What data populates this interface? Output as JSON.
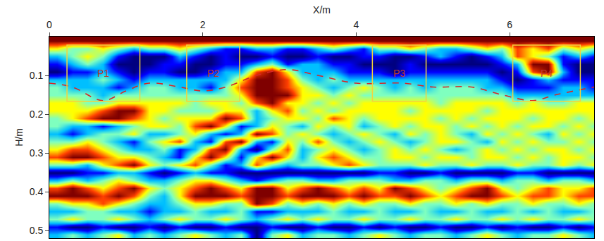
{
  "chart_data": {
    "type": "heatmap",
    "x_label": "X/m",
    "y_label": "H/m",
    "xlim": [
      0,
      7.1
    ],
    "ylim": [
      0.52,
      0
    ],
    "xticks": [
      0,
      2,
      4,
      6
    ],
    "yticks": [
      0.1,
      0.2,
      0.3,
      0.4,
      0.5
    ],
    "grid": false,
    "colors": [
      "#00007f",
      "#0000ff",
      "#00bfff",
      "#7fffbf",
      "#ffff00",
      "#ff4000",
      "#7f0000"
    ],
    "zlim": [
      -3,
      3
    ],
    "x": [
      0.1,
      0.3,
      0.5,
      0.7,
      0.9,
      1.1,
      1.3,
      1.5,
      1.7,
      1.9,
      2.1,
      2.3,
      2.5,
      2.7,
      2.9,
      3.1,
      3.3,
      3.5,
      3.7,
      3.9,
      4.1,
      4.3,
      4.5,
      4.7,
      4.9,
      5.1,
      5.3,
      5.5,
      5.7,
      5.9,
      6.1,
      6.3,
      6.5,
      6.7,
      6.9,
      7.1
    ],
    "y": [
      0.01,
      0.03,
      0.05,
      0.07,
      0.09,
      0.11,
      0.13,
      0.15,
      0.17,
      0.19,
      0.21,
      0.23,
      0.25,
      0.27,
      0.29,
      0.31,
      0.33,
      0.35,
      0.37,
      0.39,
      0.41,
      0.43,
      0.45,
      0.47,
      0.49,
      0.51
    ],
    "cells": [
      [
        3,
        3,
        3,
        3,
        3,
        3,
        3,
        3,
        3,
        3,
        3,
        3,
        3,
        3,
        3,
        3,
        3,
        3,
        3,
        3,
        3,
        3,
        3,
        3,
        3,
        3,
        3,
        3,
        3,
        3,
        3,
        3,
        3,
        3,
        3,
        3
      ],
      [
        1,
        0,
        0,
        1,
        0,
        -1,
        0,
        0,
        1,
        0,
        -1,
        -2,
        -2,
        -1,
        -1,
        -2,
        -2,
        -1,
        0,
        -1,
        -2,
        0,
        0,
        1,
        0,
        -1,
        -1,
        0,
        1,
        0,
        2,
        1,
        2,
        0,
        1,
        0
      ],
      [
        -1,
        0,
        1,
        0,
        -2,
        -3,
        -3,
        -3,
        -1,
        -2,
        -3,
        -2,
        -3,
        -3,
        -2,
        -3,
        -3,
        -2,
        -3,
        -3,
        -2,
        -2,
        -3,
        -3,
        -2,
        -1,
        -2,
        -3,
        -2,
        -1,
        2,
        1,
        0,
        -2,
        -1,
        -2
      ],
      [
        -2,
        -1,
        0,
        -1,
        -3,
        -3,
        -3,
        -2,
        -2,
        -3,
        -3,
        -2,
        -2,
        -1,
        0,
        -2,
        -1,
        -1,
        -2,
        -2,
        -3,
        -3,
        -3,
        -2,
        -3,
        -3,
        -3,
        -3,
        -3,
        -2,
        -1,
        3,
        3,
        -2,
        -3,
        -3
      ],
      [
        -3,
        -2,
        -2,
        -1,
        -2,
        -3,
        -2,
        -2,
        -3,
        -3,
        -2,
        -1,
        -1,
        2,
        3,
        1,
        -1,
        -1,
        -1,
        -2,
        -2,
        -2,
        -3,
        -2,
        -2,
        -2,
        -2,
        -2,
        -2,
        -3,
        -2,
        2,
        3,
        -1,
        -3,
        -3
      ],
      [
        -1,
        -1,
        -1,
        0,
        -1,
        -2,
        -1,
        -1,
        -1,
        -1,
        -1,
        -1,
        1,
        3,
        3,
        2,
        0,
        -1,
        0,
        -1,
        -1,
        -1,
        -1,
        -1,
        -1,
        -1,
        -1,
        -1,
        -1,
        -2,
        -3,
        -2,
        -1,
        -2,
        -2,
        -2
      ],
      [
        0,
        -1,
        -1,
        -1,
        -2,
        -1,
        0,
        0,
        -1,
        -1,
        -2,
        0,
        2,
        3,
        3,
        2,
        1,
        0,
        -1,
        0,
        1,
        0,
        -1,
        0,
        -1,
        0,
        0,
        0,
        -1,
        -1,
        -2,
        -2,
        -2,
        -1,
        -1,
        -2
      ],
      [
        0,
        0,
        0,
        -1,
        0,
        0,
        0,
        0,
        0,
        0,
        0,
        0,
        1,
        3,
        3,
        3,
        1,
        1,
        0,
        1,
        0,
        0,
        0,
        0,
        0,
        0,
        0,
        0,
        0,
        0,
        -1,
        -1,
        -1,
        -1,
        -1,
        -1
      ],
      [
        1,
        1,
        0,
        0,
        1,
        1,
        1,
        1,
        1,
        0,
        1,
        1,
        0,
        2,
        3,
        1,
        1,
        0,
        1,
        0,
        1,
        1,
        1,
        1,
        1,
        0,
        1,
        1,
        1,
        1,
        0,
        1,
        0,
        0,
        1,
        1
      ],
      [
        1,
        1,
        1,
        2,
        3,
        3,
        1,
        1,
        0,
        0,
        0,
        1,
        1,
        -1,
        1,
        2,
        0,
        1,
        0,
        1,
        1,
        1,
        1,
        0,
        1,
        1,
        1,
        1,
        0,
        1,
        1,
        1,
        1,
        1,
        1,
        1
      ],
      [
        0,
        1,
        2,
        3,
        3,
        2,
        1,
        0,
        1,
        1,
        1,
        3,
        2,
        -1,
        0,
        1,
        1,
        0,
        2,
        1,
        0,
        1,
        1,
        1,
        1,
        0,
        1,
        0,
        1,
        1,
        1,
        0,
        1,
        1,
        0,
        1
      ],
      [
        0,
        -1,
        -1,
        -2,
        -1,
        0,
        1,
        1,
        0,
        2,
        3,
        1,
        -2,
        -1,
        1,
        0,
        -1,
        1,
        0,
        1,
        -1,
        0,
        1,
        0,
        1,
        1,
        0,
        1,
        0,
        1,
        0,
        1,
        1,
        0,
        1,
        0
      ],
      [
        -1,
        -2,
        -1,
        0,
        0,
        1,
        -1,
        -1,
        0,
        1,
        -1,
        -2,
        -1,
        3,
        2,
        0,
        1,
        0,
        -1,
        0,
        1,
        0,
        -1,
        1,
        0,
        1,
        0,
        -1,
        1,
        0,
        1,
        0,
        -1,
        1,
        0,
        1
      ],
      [
        0,
        0,
        1,
        0,
        -1,
        -2,
        0,
        1,
        2,
        -1,
        -2,
        2,
        3,
        -1,
        -2,
        1,
        0,
        2,
        0,
        -1,
        0,
        1,
        0,
        -1,
        0,
        1,
        1,
        0,
        -1,
        1,
        0,
        1,
        0,
        0,
        1,
        0
      ],
      [
        1,
        2,
        2,
        1,
        0,
        -1,
        -1,
        0,
        -2,
        -1,
        2,
        3,
        -1,
        -3,
        0,
        2,
        -1,
        0,
        1,
        0,
        -1,
        0,
        1,
        0,
        1,
        0,
        -1,
        0,
        1,
        0,
        1,
        0,
        1,
        1,
        0,
        1
      ],
      [
        2,
        3,
        3,
        2,
        1,
        1,
        0,
        -1,
        -2,
        1,
        3,
        1,
        -2,
        1,
        3,
        1,
        -1,
        1,
        2,
        1,
        0,
        0,
        1,
        1,
        0,
        1,
        1,
        0,
        1,
        1,
        0,
        1,
        0,
        1,
        1,
        0
      ],
      [
        0,
        0,
        -1,
        1,
        2,
        3,
        1,
        0,
        1,
        2,
        0,
        -2,
        -1,
        2,
        0,
        -1,
        0,
        0,
        1,
        2,
        1,
        0,
        0,
        0,
        1,
        0,
        0,
        1,
        0,
        0,
        1,
        0,
        0,
        1,
        0,
        1
      ],
      [
        -3,
        -3,
        -2,
        -2,
        -1,
        -1,
        -2,
        -3,
        -2,
        -1,
        -2,
        -2,
        -3,
        -3,
        -3,
        -3,
        -3,
        -3,
        -3,
        -3,
        -3,
        -2,
        -2,
        -3,
        -3,
        -2,
        -3,
        -3,
        -3,
        -3,
        -2,
        -2,
        -3,
        -3,
        -3,
        -3
      ],
      [
        -1,
        0,
        -1,
        0,
        1,
        0,
        -1,
        -1,
        0,
        1,
        1,
        0,
        -1,
        -2,
        -1,
        0,
        0,
        -1,
        -1,
        0,
        0,
        0,
        -1,
        -1,
        0,
        0,
        -1,
        0,
        0,
        -1,
        0,
        0,
        -1,
        0,
        0,
        -1
      ],
      [
        2,
        3,
        2,
        1,
        2,
        3,
        1,
        0,
        1,
        2,
        3,
        2,
        1,
        3,
        3,
        1,
        2,
        3,
        2,
        1,
        2,
        1,
        3,
        2,
        1,
        0,
        1,
        2,
        3,
        1,
        0,
        1,
        2,
        1,
        1,
        2
      ],
      [
        3,
        3,
        3,
        2,
        3,
        2,
        0,
        -1,
        1,
        3,
        3,
        3,
        2,
        3,
        3,
        2,
        3,
        3,
        3,
        2,
        3,
        2,
        2,
        3,
        2,
        1,
        2,
        3,
        3,
        2,
        1,
        2,
        2,
        1,
        2,
        2
      ],
      [
        0,
        1,
        1,
        2,
        1,
        0,
        -1,
        -1,
        0,
        1,
        1,
        0,
        0,
        3,
        2,
        0,
        1,
        0,
        1,
        0,
        1,
        0,
        0,
        1,
        0,
        0,
        1,
        0,
        1,
        0,
        0,
        1,
        0,
        0,
        1,
        0
      ],
      [
        -1,
        -1,
        0,
        0,
        -1,
        -1,
        -2,
        -1,
        -1,
        0,
        -1,
        -1,
        0,
        -2,
        -2,
        -1,
        -1,
        -1,
        0,
        -1,
        -1,
        0,
        -1,
        -1,
        0,
        -1,
        -1,
        0,
        -1,
        -1,
        0,
        -1,
        0,
        -1,
        -1,
        0
      ],
      [
        0,
        1,
        0,
        0,
        1,
        0,
        -1,
        0,
        1,
        0,
        0,
        1,
        0,
        -1,
        0,
        1,
        0,
        1,
        0,
        0,
        1,
        0,
        0,
        1,
        0,
        0,
        1,
        0,
        0,
        1,
        0,
        1,
        0,
        0,
        1,
        0
      ],
      [
        -2,
        -3,
        -3,
        -2,
        -3,
        -3,
        -2,
        -3,
        -2,
        -3,
        -3,
        -2,
        -3,
        -3,
        -2,
        -3,
        -3,
        -2,
        -3,
        -3,
        -2,
        -3,
        -2,
        -3,
        -3,
        -2,
        -3,
        -3,
        -2,
        -3,
        -2,
        -3,
        -3,
        -2,
        -3,
        -2
      ],
      [
        -1,
        0,
        -1,
        0,
        1,
        -1,
        0,
        -1,
        0,
        1,
        0,
        -1,
        0,
        -3,
        0,
        1,
        -1,
        0,
        0,
        -1,
        0,
        1,
        0,
        -1,
        0,
        0,
        -1,
        0,
        1,
        0,
        -1,
        0,
        0,
        1,
        0,
        -1
      ]
    ],
    "lines": [
      {
        "x": [
          0,
          0.3,
          0.7,
          1.0,
          1.3,
          1.7,
          2.0,
          2.3,
          2.7,
          3.1,
          3.5,
          4.0,
          4.6,
          5.0,
          5.5,
          5.9,
          6.3,
          6.6,
          7.1
        ],
        "values": [
          0.12,
          0.13,
          0.165,
          0.14,
          0.12,
          0.13,
          0.14,
          0.13,
          0.1,
          0.085,
          0.1,
          0.12,
          0.12,
          0.13,
          0.13,
          0.15,
          0.165,
          0.15,
          0.13
        ],
        "color": "#d62728",
        "line_style": "dashed"
      }
    ],
    "boxes": [
      {
        "label": "P1",
        "xlim": [
          0.23,
          1.18
        ],
        "ylim": [
          0.022,
          0.167
        ],
        "color": "#f5d33b"
      },
      {
        "label": "P2",
        "xlim": [
          1.79,
          2.48
        ],
        "ylim": [
          0.022,
          0.167
        ],
        "color": "#f5d33b"
      },
      {
        "label": "P3",
        "xlim": [
          4.21,
          4.91
        ],
        "ylim": [
          0.022,
          0.167
        ],
        "color": "#f5d33b"
      },
      {
        "label": "P4",
        "xlim": [
          6.04,
          6.92
        ],
        "ylim": [
          0.022,
          0.167
        ],
        "color": "#f5d33b"
      }
    ],
    "label_color": "#c0392b"
  }
}
